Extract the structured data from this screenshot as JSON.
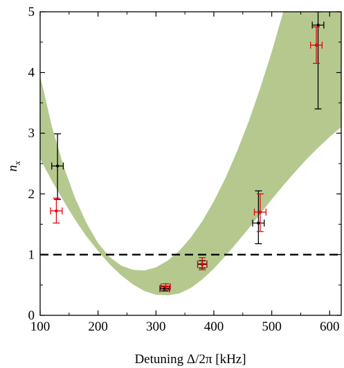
{
  "chart_data": {
    "type": "scatter",
    "title": "",
    "xlabel": "Detuning Δ/2π [kHz]",
    "ylabel": "n",
    "ylabel_subscript": "x",
    "xlim": [
      100,
      620
    ],
    "ylim": [
      0,
      5
    ],
    "x_ticks": [
      100,
      200,
      300,
      400,
      500,
      600
    ],
    "x_tick_labels": [
      "100",
      "200",
      "300",
      "400",
      "500",
      "600"
    ],
    "y_ticks": [
      0,
      1,
      2,
      3,
      4,
      5
    ],
    "y_tick_labels": [
      "0",
      "1",
      "2",
      "3",
      "4",
      "5"
    ],
    "grid": false,
    "band": {
      "color": "#b5c98e",
      "x": [
        100,
        120,
        140,
        160,
        180,
        200,
        220,
        240,
        260,
        280,
        300,
        320,
        340,
        360,
        380,
        400,
        420,
        440,
        460,
        480,
        500,
        520,
        540,
        560,
        580,
        600,
        620
      ],
      "lower": [
        2.58,
        2.22,
        1.89,
        1.58,
        1.3,
        1.06,
        0.84,
        0.66,
        0.51,
        0.4,
        0.34,
        0.33,
        0.36,
        0.45,
        0.59,
        0.77,
        0.98,
        1.2,
        1.43,
        1.67,
        1.91,
        2.14,
        2.36,
        2.57,
        2.76,
        2.94,
        3.1
      ],
      "upper": [
        3.95,
        3.12,
        2.47,
        1.94,
        1.52,
        1.19,
        0.96,
        0.82,
        0.75,
        0.74,
        0.79,
        0.9,
        1.06,
        1.28,
        1.55,
        1.88,
        2.26,
        2.7,
        3.19,
        3.74,
        4.34,
        5.0,
        5.6,
        5.7,
        5.8,
        5.9,
        6.0
      ]
    },
    "reference_line": {
      "y": 1,
      "color": "#000000",
      "style": "dashed"
    },
    "series": [
      {
        "color": "#000000",
        "points": [
          {
            "x": 130,
            "y": 2.46,
            "xerr": 10,
            "yerr_low": 0.55,
            "yerr_high": 0.53
          },
          {
            "x": 315,
            "y": 0.44,
            "xerr": 8,
            "yerr_low": 0.04,
            "yerr_high": 0.04
          },
          {
            "x": 380,
            "y": 0.84,
            "xerr": 8,
            "yerr_low": 0.06,
            "yerr_high": 0.06
          },
          {
            "x": 477,
            "y": 1.52,
            "xerr": 10,
            "yerr_low": 0.34,
            "yerr_high": 0.53
          },
          {
            "x": 580,
            "y": 4.78,
            "xerr": 10,
            "yerr_low": 1.38,
            "yerr_high": 0.22
          }
        ]
      },
      {
        "color": "#e8000b",
        "points": [
          {
            "x": 128,
            "y": 1.72,
            "xerr": 10,
            "yerr_low": 0.2,
            "yerr_high": 0.21
          },
          {
            "x": 317,
            "y": 0.47,
            "xerr": 8,
            "yerr_low": 0.05,
            "yerr_high": 0.05
          },
          {
            "x": 380,
            "y": 0.85,
            "xerr": 8,
            "yerr_low": 0.1,
            "yerr_high": 0.1
          },
          {
            "x": 480,
            "y": 1.7,
            "xerr": 10,
            "yerr_low": 0.32,
            "yerr_high": 0.3
          },
          {
            "x": 577,
            "y": 4.45,
            "xerr": 10,
            "yerr_low": 0.3,
            "yerr_high": 0.3
          }
        ]
      }
    ]
  }
}
